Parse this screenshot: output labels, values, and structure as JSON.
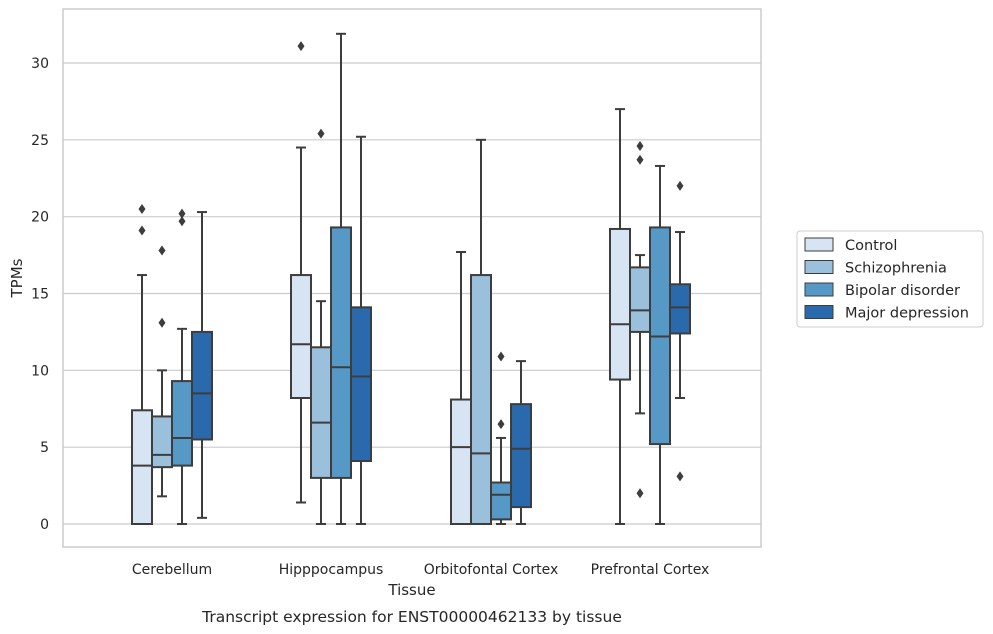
{
  "chart_data": {
    "type": "box",
    "xlabel": "Tissue",
    "ylabel": "TPMs",
    "caption": "Transcript expression for ENST00000462133 by tissue",
    "ylim": [
      -1.5,
      33.5
    ],
    "yticks": [
      "0",
      "5",
      "10",
      "15",
      "20",
      "25",
      "30"
    ],
    "grid": true,
    "legend_position": "right",
    "categories": [
      "Cerebellum",
      "Hipppocampus",
      "Orbitofontal Cortex",
      "Prefrontal Cortex"
    ],
    "series": [
      {
        "name": "Control",
        "color": "#d6e4f3",
        "boxes": [
          {
            "whislo": 0,
            "q1": 0,
            "med": 3.8,
            "q3": 7.4,
            "whishi": 16.2,
            "fliers": [
              19.1,
              20.5
            ]
          },
          {
            "whislo": 1.4,
            "q1": 8.2,
            "med": 11.7,
            "q3": 16.2,
            "whishi": 24.5,
            "fliers": [
              31.1
            ]
          },
          {
            "whislo": 0,
            "q1": 0,
            "med": 5.0,
            "q3": 8.1,
            "whishi": 17.7,
            "fliers": []
          },
          {
            "whislo": 0,
            "q1": 9.4,
            "med": 13.0,
            "q3": 19.2,
            "whishi": 27.0,
            "fliers": []
          }
        ]
      },
      {
        "name": "Schizophrenia",
        "color": "#9ac0db",
        "boxes": [
          {
            "whislo": 1.8,
            "q1": 3.7,
            "med": 4.5,
            "q3": 7.0,
            "whishi": 10.0,
            "fliers": [
              13.1,
              17.8
            ]
          },
          {
            "whislo": 0,
            "q1": 3.0,
            "med": 6.6,
            "q3": 11.5,
            "whishi": 14.5,
            "fliers": [
              25.4
            ]
          },
          {
            "whislo": 0,
            "q1": 0,
            "med": 4.6,
            "q3": 16.2,
            "whishi": 25.0,
            "fliers": []
          },
          {
            "whislo": 7.2,
            "q1": 12.5,
            "med": 13.9,
            "q3": 16.7,
            "whishi": 17.5,
            "fliers": [
              2.0,
              23.7,
              24.6
            ]
          }
        ]
      },
      {
        "name": "Bipolar disorder",
        "color": "#5799c6",
        "boxes": [
          {
            "whislo": 0,
            "q1": 3.8,
            "med": 5.6,
            "q3": 9.3,
            "whishi": 12.7,
            "fliers": [
              19.7,
              20.2
            ]
          },
          {
            "whislo": 0,
            "q1": 3.0,
            "med": 10.2,
            "q3": 19.3,
            "whishi": 31.9,
            "fliers": []
          },
          {
            "whislo": 0,
            "q1": 0.3,
            "med": 1.9,
            "q3": 2.7,
            "whishi": 5.6,
            "fliers": [
              6.5,
              10.9
            ]
          },
          {
            "whislo": 0,
            "q1": 5.2,
            "med": 12.2,
            "q3": 19.3,
            "whishi": 23.3,
            "fliers": []
          }
        ]
      },
      {
        "name": "Major depression",
        "color": "#2a6aac",
        "boxes": [
          {
            "whislo": 0.4,
            "q1": 5.5,
            "med": 8.5,
            "q3": 12.5,
            "whishi": 20.3,
            "fliers": []
          },
          {
            "whislo": 0,
            "q1": 4.1,
            "med": 9.6,
            "q3": 14.1,
            "whishi": 25.2,
            "fliers": []
          },
          {
            "whislo": 0,
            "q1": 1.1,
            "med": 4.9,
            "q3": 7.8,
            "whishi": 10.6,
            "fliers": []
          },
          {
            "whislo": 8.2,
            "q1": 12.4,
            "med": 14.1,
            "q3": 15.6,
            "whishi": 19.0,
            "fliers": [
              3.1,
              22.0
            ]
          }
        ]
      }
    ]
  }
}
